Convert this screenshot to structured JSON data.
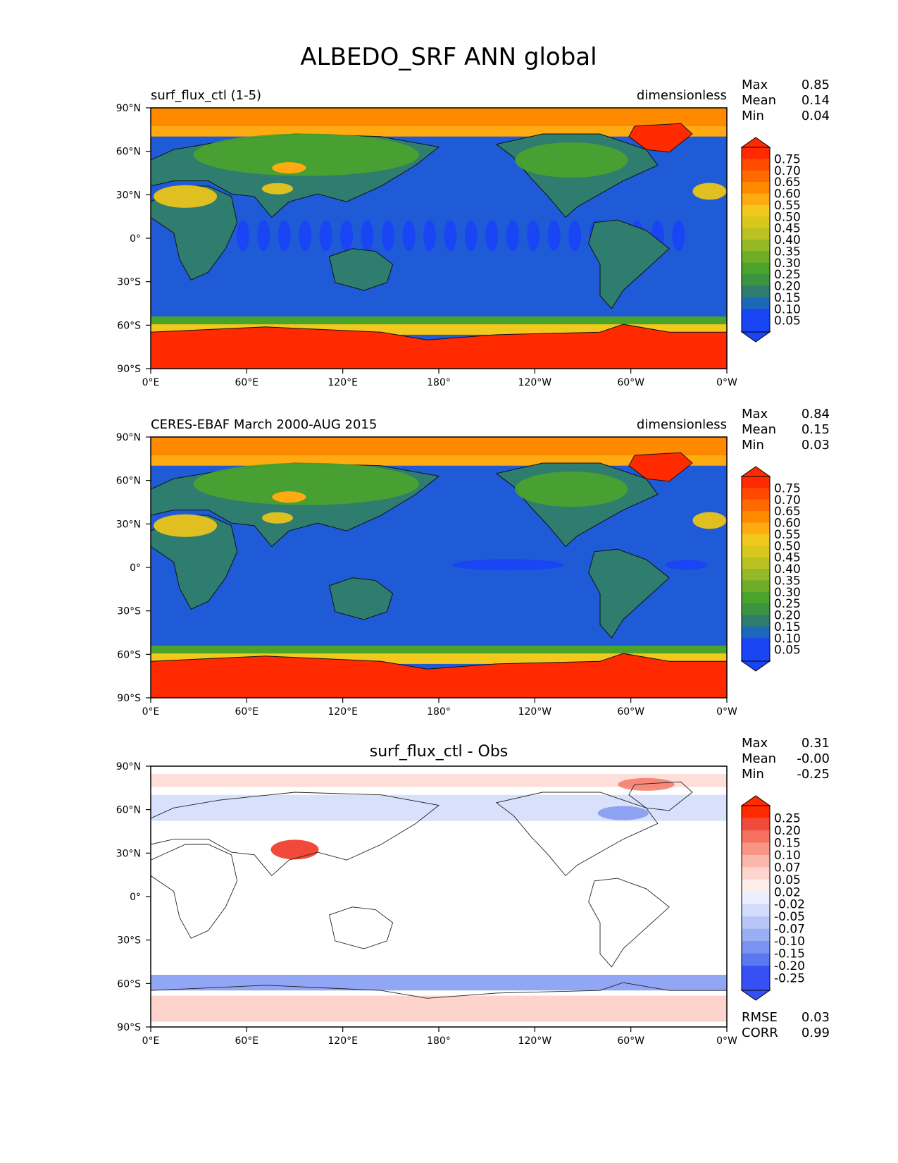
{
  "title": "ALBEDO_SRF ANN global",
  "lat_labels": [
    "90°N",
    "60°N",
    "30°N",
    "0°",
    "30°S",
    "60°S",
    "90°S"
  ],
  "lon_labels": [
    "0°E",
    "60°E",
    "120°E",
    "180°",
    "120°W",
    "60°W",
    "0°W"
  ],
  "stat_labels": {
    "max": "Max",
    "mean": "Mean",
    "min": "Min",
    "rmse": "RMSE",
    "corr": "CORR"
  },
  "colors": {
    "ocean_blue": "#1f5bd6",
    "land_low": "#2e7d6e",
    "land_mid": "#4aa42a",
    "land_high": "#e0c020",
    "snow": "#ff2a00",
    "snow_edge": "#ff8a00",
    "diff_pos": "#f24a3a",
    "diff_neg": "#4a6af0"
  },
  "panels": [
    {
      "left_title": "surf_flux_ctl (1-5)",
      "center_title": "",
      "right_title": "dimensionless",
      "type": "field",
      "stats": {
        "max": "0.85",
        "mean": "0.14",
        "min": "0.04"
      },
      "colorbar": [
        "0.75",
        "0.70",
        "0.65",
        "0.60",
        "0.55",
        "0.50",
        "0.45",
        "0.40",
        "0.35",
        "0.30",
        "0.25",
        "0.20",
        "0.15",
        "0.10",
        "0.05"
      ]
    },
    {
      "left_title": "CERES-EBAF March 2000-AUG 2015",
      "center_title": "",
      "right_title": "dimensionless",
      "type": "field",
      "stats": {
        "max": "0.84",
        "mean": "0.15",
        "min": "0.03"
      },
      "colorbar": [
        "0.75",
        "0.70",
        "0.65",
        "0.60",
        "0.55",
        "0.50",
        "0.45",
        "0.40",
        "0.35",
        "0.30",
        "0.25",
        "0.20",
        "0.15",
        "0.10",
        "0.05"
      ]
    },
    {
      "left_title": "",
      "center_title": "surf_flux_ctl - Obs",
      "right_title": "",
      "type": "diff",
      "stats": {
        "max": "0.31",
        "mean": "-0.00",
        "min": "-0.25",
        "rmse": "0.03",
        "corr": "0.99"
      },
      "colorbar": [
        "0.25",
        "0.20",
        "0.15",
        "0.10",
        "0.07",
        "0.05",
        "0.02",
        "-0.02",
        "-0.05",
        "-0.07",
        "-0.10",
        "-0.15",
        "-0.20",
        "-0.25"
      ]
    }
  ]
}
